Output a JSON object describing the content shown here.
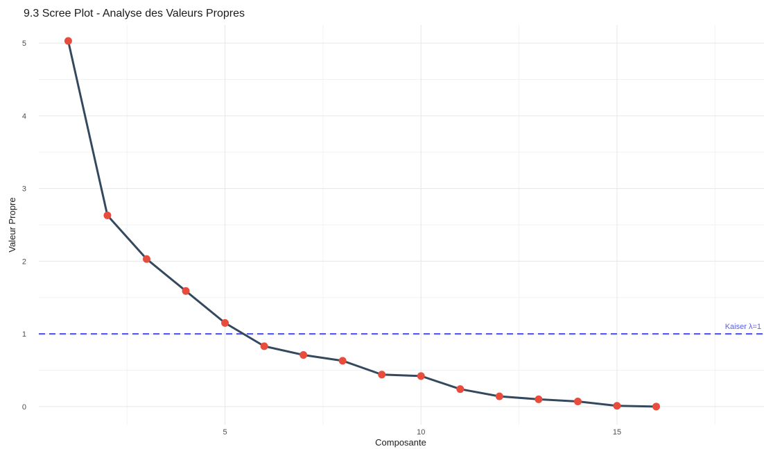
{
  "chart_data": {
    "type": "line",
    "title": "9.3 Scree Plot - Analyse des Valeurs Propres",
    "xlabel": "Composante",
    "ylabel": "Valeur Propre",
    "xlim": [
      0.25,
      18.75
    ],
    "ylim": [
      -0.25,
      5.25
    ],
    "x_ticks": [
      5,
      10,
      15
    ],
    "y_ticks": [
      0,
      1,
      2,
      3,
      4,
      5
    ],
    "grid": true,
    "series": [
      {
        "x": [
          1,
          2,
          3,
          4,
          5,
          6,
          7,
          8,
          9,
          10,
          11,
          12,
          13,
          14,
          15,
          16
        ],
        "values": [
          5.03,
          2.63,
          2.03,
          1.59,
          1.15,
          0.83,
          0.71,
          0.63,
          0.44,
          0.42,
          0.24,
          0.14,
          0.1,
          0.07,
          0.01,
          0.0
        ],
        "line_color": "#34495e",
        "point_color": "#e74c3c"
      }
    ],
    "reference_lines": [
      {
        "y": 1,
        "label": "Kaiser λ=1",
        "color": "#5a5cf0",
        "style": "dashed"
      }
    ]
  }
}
